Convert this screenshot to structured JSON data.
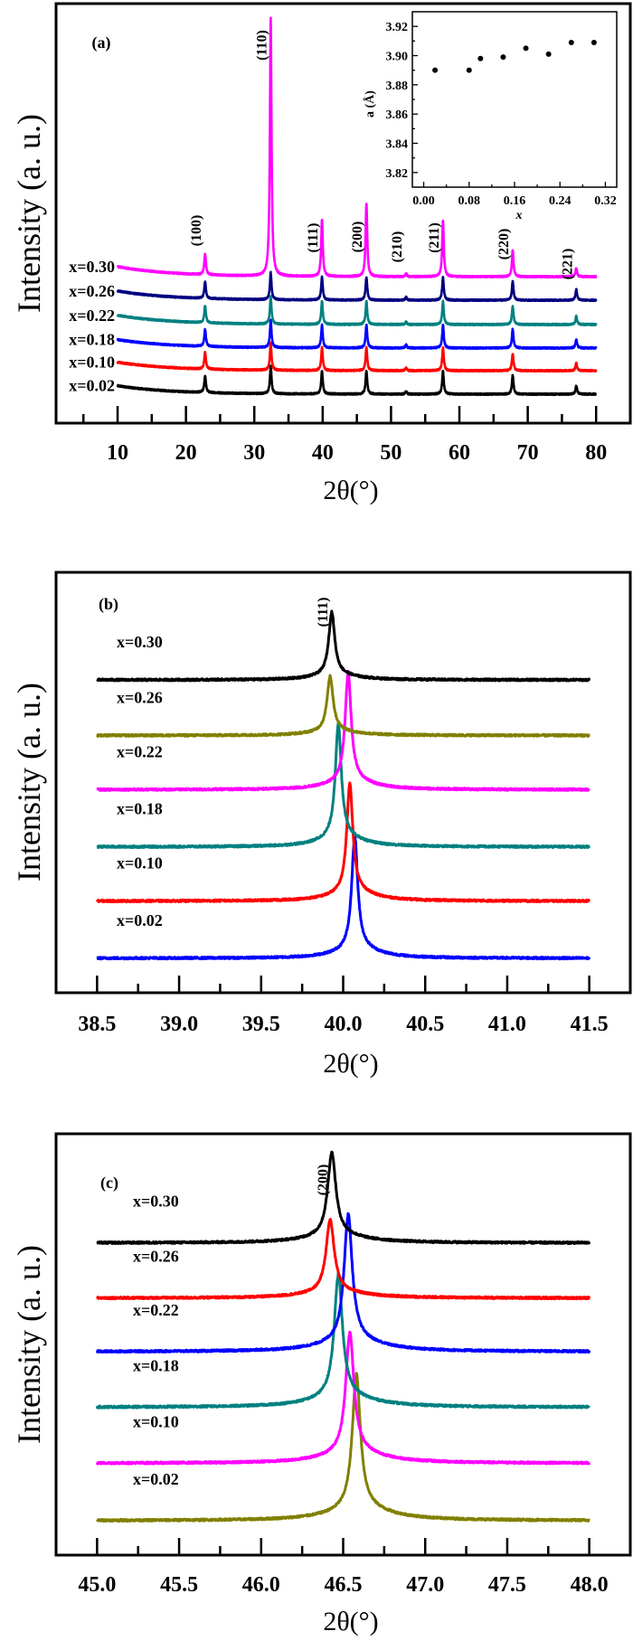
{
  "chart_data": [
    {
      "panel": "(a)",
      "type": "line",
      "xlabel": "2θ(°)",
      "ylabel": "Intensity (a. u.)",
      "xlim": [
        1,
        85
      ],
      "ylim": [
        0,
        100
      ],
      "grid": false,
      "xticks": [
        "10",
        "20",
        "30",
        "40",
        "50",
        "60",
        "70",
        "80"
      ],
      "xtick_values": [
        10,
        20,
        30,
        40,
        50,
        60,
        70,
        80
      ],
      "xminor": [
        5,
        15,
        25,
        35,
        45,
        55,
        65,
        75
      ],
      "xrange": [
        10,
        80
      ],
      "peak_labels": [
        {
          "text": "(100)",
          "x": 22.8
        },
        {
          "text": "(110)",
          "x": 32.4
        },
        {
          "text": "(111)",
          "x": 39.9
        },
        {
          "text": "(200)",
          "x": 46.4
        },
        {
          "text": "(210)",
          "x": 52.2
        },
        {
          "text": "(211)",
          "x": 57.6
        },
        {
          "text": "(220)",
          "x": 67.8
        },
        {
          "text": "(221)",
          "x": 77.1
        }
      ],
      "series": [
        {
          "name": "x=0.02",
          "color": "#000000",
          "baseline": 6.9,
          "background": 2.0,
          "peaks": [
            [
              22.8,
              4
            ],
            [
              32.4,
              6.5
            ],
            [
              39.9,
              5.5
            ],
            [
              46.4,
              5.5
            ],
            [
              52.2,
              0.6
            ],
            [
              57.6,
              5.5
            ],
            [
              67.8,
              4.5
            ],
            [
              77.1,
              2.0
            ]
          ]
        },
        {
          "name": "x=0.10",
          "color": "#ff0000",
          "baseline": 12.5,
          "background": 2.0,
          "peaks": [
            [
              22.8,
              4
            ],
            [
              32.4,
              6.5
            ],
            [
              39.9,
              5.5
            ],
            [
              46.4,
              5.5
            ],
            [
              52.2,
              0.6
            ],
            [
              57.6,
              5.5
            ],
            [
              67.8,
              4.0
            ],
            [
              77.1,
              1.8
            ]
          ]
        },
        {
          "name": "x=0.18",
          "color": "#0000ff",
          "baseline": 17.9,
          "background": 2.0,
          "peaks": [
            [
              22.8,
              4
            ],
            [
              32.4,
              6.5
            ],
            [
              39.9,
              5.5
            ],
            [
              46.4,
              5.5
            ],
            [
              52.2,
              0.8
            ],
            [
              57.6,
              5.5
            ],
            [
              67.8,
              4.5
            ],
            [
              77.1,
              2.0
            ]
          ]
        },
        {
          "name": "x=0.22",
          "color": "#008080",
          "baseline": 23.5,
          "background": 2.2,
          "peaks": [
            [
              22.8,
              4
            ],
            [
              32.4,
              6.5
            ],
            [
              39.9,
              5.5
            ],
            [
              46.4,
              5.5
            ],
            [
              52.2,
              0.6
            ],
            [
              57.6,
              5.5
            ],
            [
              67.8,
              4.5
            ],
            [
              77.1,
              2.0
            ]
          ]
        },
        {
          "name": "x=0.26",
          "color": "#000080",
          "baseline": 29.3,
          "background": 2.2,
          "peaks": [
            [
              22.8,
              4
            ],
            [
              32.4,
              6.5
            ],
            [
              39.9,
              5.5
            ],
            [
              46.4,
              5.5
            ],
            [
              52.2,
              0.7
            ],
            [
              57.6,
              5.5
            ],
            [
              67.8,
              4.5
            ],
            [
              77.1,
              2.6
            ]
          ]
        },
        {
          "name": "x=0.30",
          "color": "#ff00ff",
          "baseline": 34.9,
          "background": 2.4,
          "peaks": [
            [
              22.8,
              5
            ],
            [
              32.4,
              61.6
            ],
            [
              39.9,
              13.6
            ],
            [
              46.4,
              17.5
            ],
            [
              52.2,
              0.7
            ],
            [
              57.6,
              13.4
            ],
            [
              67.8,
              6.3
            ],
            [
              77.1,
              2.0
            ]
          ]
        }
      ]
    },
    {
      "panel": "inset",
      "type": "scatter",
      "xlabel": "x",
      "ylabel": "a (Å)",
      "xlim": [
        -0.02,
        0.34
      ],
      "ylim": [
        3.81,
        3.93
      ],
      "grid": false,
      "xticks": [
        "0.00",
        "0.08",
        "0.16",
        "0.24",
        "0.32"
      ],
      "xtick_values": [
        0.0,
        0.08,
        0.16,
        0.24,
        0.32
      ],
      "xminor": [
        0.04,
        0.12,
        0.2,
        0.28
      ],
      "yticks": [
        "3.82",
        "3.84",
        "3.86",
        "3.88",
        "3.90",
        "3.92"
      ],
      "ytick_values": [
        3.82,
        3.84,
        3.86,
        3.88,
        3.9,
        3.92
      ],
      "yminor": [
        3.83,
        3.85,
        3.87,
        3.89,
        3.91
      ],
      "x": [
        0.02,
        0.08,
        0.1,
        0.14,
        0.18,
        0.22,
        0.26,
        0.3
      ],
      "y": [
        3.89,
        3.89,
        3.898,
        3.899,
        3.905,
        3.901,
        3.909,
        3.909
      ]
    },
    {
      "panel": "(b)",
      "type": "line",
      "xlabel": "2θ(°)",
      "ylabel": "Intensity (a. u.)",
      "xlim": [
        38.25,
        41.75
      ],
      "ylim": [
        0,
        100
      ],
      "grid": false,
      "xticks": [
        "38.5",
        "39.0",
        "39.5",
        "40.0",
        "40.5",
        "41.0",
        "41.5"
      ],
      "xtick_values": [
        38.5,
        39.0,
        39.5,
        40.0,
        40.5,
        41.0,
        41.5
      ],
      "xminor": [
        38.75,
        39.25,
        39.75,
        40.25,
        40.75,
        41.25
      ],
      "xrange": [
        38.5,
        41.5
      ],
      "peak_labels": [
        {
          "text": "(111)",
          "x": 39.93
        }
      ],
      "series": [
        {
          "name": "x=0.02",
          "color": "#0000ff",
          "baseline": 8.2,
          "peaks": [
            [
              40.07,
              26.5
            ]
          ]
        },
        {
          "name": "x=0.10",
          "color": "#ff0000",
          "baseline": 21.8,
          "peaks": [
            [
              40.04,
              25.6
            ]
          ]
        },
        {
          "name": "x=0.18",
          "color": "#008080",
          "baseline": 34.7,
          "peaks": [
            [
              39.97,
              26.7
            ]
          ]
        },
        {
          "name": "x=0.22",
          "color": "#ff00ff",
          "baseline": 48.3,
          "peaks": [
            [
              40.03,
              25.4
            ]
          ]
        },
        {
          "name": "x=0.26",
          "color": "#808000",
          "baseline": 61.2,
          "peaks": [
            [
              39.92,
              12.9
            ]
          ]
        },
        {
          "name": "x=0.30",
          "color": "#000000",
          "baseline": 74.4,
          "peaks": [
            [
              39.93,
              14.7
            ]
          ]
        }
      ]
    },
    {
      "panel": "(c)",
      "type": "line",
      "xlabel": "2θ(°)",
      "ylabel": "Intensity (a. u.)",
      "xlim": [
        44.75,
        48.25
      ],
      "ylim": [
        0,
        100
      ],
      "grid": false,
      "xticks": [
        "45.0",
        "45.5",
        "46.0",
        "46.5",
        "47.0",
        "47.5",
        "48.0"
      ],
      "xtick_values": [
        45.0,
        45.5,
        46.0,
        46.5,
        47.0,
        47.5,
        48.0
      ],
      "xminor": [
        45.25,
        45.75,
        46.25,
        46.75,
        47.25,
        47.75
      ],
      "xrange": [
        45.0,
        48.0
      ],
      "peak_labels": [
        {
          "text": "(200)",
          "x": 46.43
        }
      ],
      "series": [
        {
          "name": "x=0.02",
          "color": "#808000",
          "baseline": 8.2,
          "peaks": [
            [
              46.58,
              31.7
            ]
          ]
        },
        {
          "name": "x=0.10",
          "color": "#ff00ff",
          "baseline": 21.8,
          "peaks": [
            [
              46.54,
              28.4
            ]
          ]
        },
        {
          "name": "x=0.18",
          "color": "#008080",
          "baseline": 35.1,
          "peaks": [
            [
              46.47,
              28.9
            ]
          ]
        },
        {
          "name": "x=0.22",
          "color": "#0000ff",
          "baseline": 48.3,
          "peaks": [
            [
              46.53,
              29.7
            ]
          ]
        },
        {
          "name": "x=0.26",
          "color": "#ff0000",
          "baseline": 61.0,
          "peaks": [
            [
              46.42,
              17.0
            ]
          ]
        },
        {
          "name": "x=0.30",
          "color": "#000000",
          "baseline": 74.1,
          "peaks": [
            [
              46.43,
              19.6
            ]
          ]
        }
      ]
    }
  ]
}
